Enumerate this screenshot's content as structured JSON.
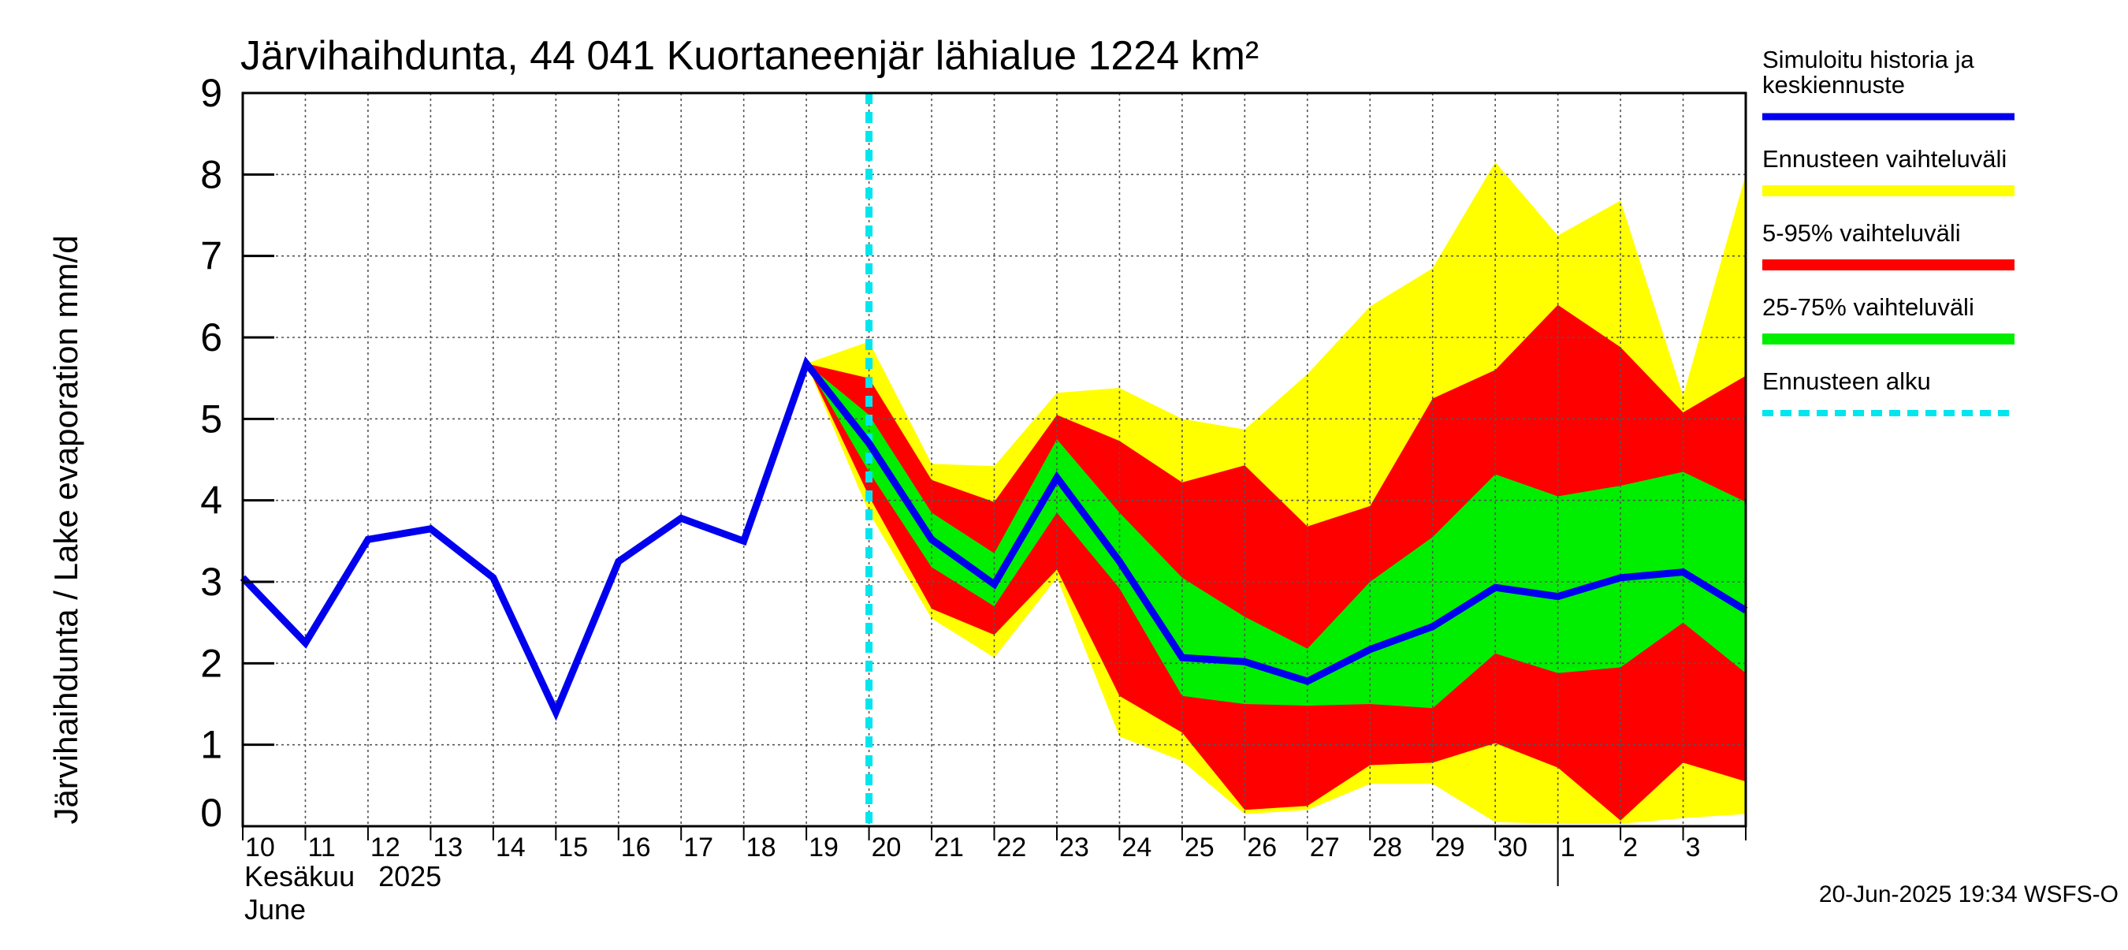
{
  "chart_data": {
    "type": "area",
    "title": "Järvihaihdunta, 44 041 Kuortaneenjär lähialue 1224 km²",
    "ylabel": "Järvihaihdunta / Lake evaporation   mm/d",
    "ylim": [
      0,
      9
    ],
    "yticks": [
      0,
      1,
      2,
      3,
      4,
      5,
      6,
      7,
      8,
      9
    ],
    "xlim": [
      0,
      24
    ],
    "x_tick_labels": [
      "10",
      "11",
      "12",
      "13",
      "14",
      "15",
      "16",
      "17",
      "18",
      "19",
      "20",
      "21",
      "22",
      "23",
      "24",
      "25",
      "26",
      "27",
      "28",
      "29",
      "30",
      "1",
      "2",
      "3"
    ],
    "month_label_fi": "Kesäkuu   2025",
    "month_label_en": "June",
    "forecast_start_x": 10,
    "grid": true,
    "legend_placement": "right",
    "series": [
      {
        "name": "Simuloitu historia ja keskiennuste",
        "legend_lines": [
          "Simuloitu historia ja",
          "keskiennuste"
        ],
        "kind": "line",
        "color": "#0000ee",
        "x": [
          0,
          1,
          2,
          3,
          4,
          5,
          6,
          7,
          8,
          9,
          10,
          11,
          12,
          13,
          14,
          15,
          16,
          17,
          18,
          19,
          20,
          21,
          22,
          23,
          24
        ],
        "y": [
          3.05,
          2.25,
          3.52,
          3.65,
          3.05,
          1.4,
          3.25,
          3.78,
          3.5,
          5.68,
          4.7,
          3.52,
          2.97,
          4.28,
          3.25,
          2.07,
          2.02,
          1.78,
          2.17,
          2.45,
          2.93,
          2.82,
          3.05,
          3.12,
          2.65
        ]
      },
      {
        "name": "Ennusteen vaihteluväli",
        "kind": "band",
        "color": "#ffff00",
        "x": [
          9,
          10,
          11,
          12,
          13,
          14,
          15,
          16,
          17,
          18,
          19,
          20,
          21,
          22,
          23,
          24
        ],
        "upper": [
          5.68,
          5.95,
          4.45,
          4.42,
          5.32,
          5.38,
          5.0,
          4.87,
          5.55,
          6.38,
          6.85,
          8.15,
          7.25,
          7.68,
          5.28,
          8.0
        ],
        "lower": [
          5.68,
          3.85,
          2.55,
          2.07,
          3.05,
          1.1,
          0.8,
          0.15,
          0.2,
          0.52,
          0.52,
          0.05,
          0.03,
          0.03,
          0.1,
          0.15
        ]
      },
      {
        "name": "5-95% vaihteluväli",
        "kind": "band",
        "color": "#ff0000",
        "x": [
          9,
          10,
          11,
          12,
          13,
          14,
          15,
          16,
          17,
          18,
          19,
          20,
          21,
          22,
          23,
          24
        ],
        "upper": [
          5.68,
          5.5,
          4.25,
          3.98,
          5.05,
          4.73,
          4.22,
          4.43,
          3.68,
          3.93,
          5.25,
          5.6,
          6.4,
          5.88,
          5.08,
          5.53
        ],
        "lower": [
          5.68,
          4.05,
          2.67,
          2.35,
          3.15,
          1.6,
          1.15,
          0.2,
          0.25,
          0.75,
          0.78,
          1.02,
          0.72,
          0.07,
          0.78,
          0.55
        ]
      },
      {
        "name": "25-75% vaihteluväli",
        "kind": "band",
        "color": "#00ee00",
        "x": [
          9,
          10,
          11,
          12,
          13,
          14,
          15,
          16,
          17,
          18,
          19,
          20,
          21,
          22,
          23,
          24
        ],
        "upper": [
          5.68,
          5.05,
          3.85,
          3.35,
          4.75,
          3.85,
          3.05,
          2.57,
          2.18,
          3.0,
          3.55,
          4.32,
          4.05,
          4.18,
          4.35,
          3.98
        ],
        "lower": [
          5.68,
          4.35,
          3.18,
          2.7,
          3.85,
          2.92,
          1.6,
          1.5,
          1.48,
          1.5,
          1.45,
          2.12,
          1.88,
          1.95,
          2.5,
          1.88
        ]
      },
      {
        "name": "Ennusteen alku",
        "kind": "vline",
        "color": "#00e5ee",
        "x": 10
      }
    ],
    "legend_order": [
      "Simuloitu historia ja keskiennuste",
      "Ennusteen vaihteluväli",
      "5-95% vaihteluväli",
      "25-75% vaihteluväli",
      "Ennusteen alku"
    ]
  },
  "footer": {
    "timestamp": "20-Jun-2025 19:34 WSFS-O"
  }
}
